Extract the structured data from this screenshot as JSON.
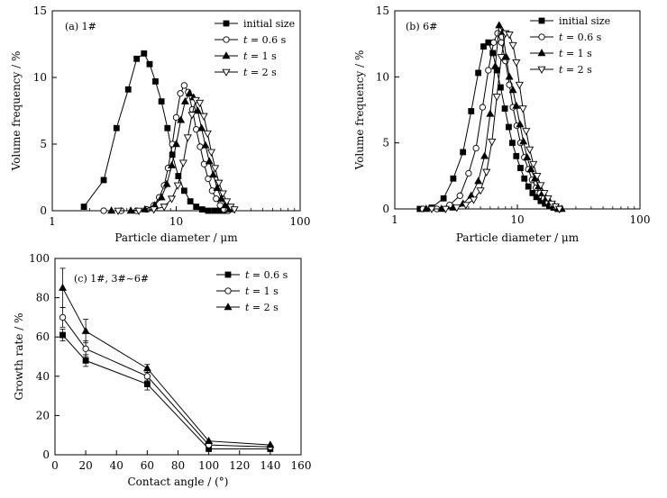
{
  "chart_data": [
    {
      "type": "line",
      "panel_label": "(a) 1#",
      "xlabel": "Particle diameter / μm",
      "ylabel": "Volume frequency / %",
      "xscale": "log",
      "xlim": [
        1,
        100
      ],
      "ylim": [
        0,
        15
      ],
      "xticks": [
        1,
        10,
        100
      ],
      "xtick_labels": [
        "1",
        "10",
        "100"
      ],
      "yticks": [
        0,
        5,
        10,
        15
      ],
      "ytick_labels": [
        "0",
        "5",
        "10",
        "15"
      ],
      "legend_position": "top-right",
      "series": [
        {
          "name": "initial size",
          "legend_label": "initial size",
          "marker": "square-filled",
          "x": [
            1.8,
            2.6,
            3.3,
            4.1,
            4.8,
            5.5,
            6.1,
            6.8,
            7.6,
            8.5,
            9.3,
            10.4,
            11.6,
            13.0,
            14.5,
            16.2,
            18.1,
            20.3,
            22.7,
            25.4
          ],
          "y": [
            0.3,
            2.3,
            6.2,
            9.1,
            11.4,
            11.8,
            11.0,
            9.7,
            8.2,
            6.2,
            4.2,
            2.6,
            1.5,
            0.7,
            0.3,
            0.1,
            0.0,
            0.0,
            0.0,
            0.0
          ]
        },
        {
          "name": "t = 0.6 s",
          "legend_italic": "t",
          "legend_rest": " = 0.6 s",
          "marker": "circle-open",
          "x": [
            2.6,
            3.6,
            4.8,
            5.8,
            6.6,
            7.3,
            8.0,
            8.6,
            9.3,
            10.0,
            10.8,
            11.6,
            12.5,
            13.5,
            14.5,
            15.6,
            16.8,
            18.1,
            19.5,
            21.0,
            22.6,
            24.3,
            26.2
          ],
          "y": [
            0.0,
            0.0,
            0.0,
            0.1,
            0.4,
            1.0,
            1.9,
            3.2,
            5.0,
            7.0,
            8.8,
            9.4,
            8.9,
            7.6,
            6.1,
            4.8,
            3.5,
            2.4,
            1.5,
            0.9,
            0.4,
            0.1,
            0.0
          ]
        },
        {
          "name": "t = 1 s",
          "legend_italic": "t",
          "legend_rest": " = 1 s",
          "marker": "triangle-up-filled",
          "x": [
            3.0,
            4.3,
            5.6,
            6.7,
            7.6,
            8.4,
            9.2,
            10.0,
            10.9,
            11.8,
            12.8,
            13.8,
            14.9,
            16.0,
            17.2,
            18.5,
            19.9,
            21.4,
            23.1,
            24.9,
            26.8
          ],
          "y": [
            0.0,
            0.0,
            0.1,
            0.4,
            1.0,
            2.0,
            3.4,
            5.0,
            6.8,
            8.2,
            8.8,
            8.5,
            7.5,
            6.2,
            4.9,
            3.7,
            2.7,
            1.7,
            0.9,
            0.4,
            0.1
          ]
        },
        {
          "name": "t = 2 s",
          "legend_italic": "t",
          "legend_rest": " = 2 s",
          "marker": "triangle-down-open",
          "x": [
            3.4,
            5.0,
            6.6,
            8.0,
            9.2,
            10.3,
            11.4,
            12.4,
            13.4,
            14.4,
            15.5,
            16.7,
            17.9,
            19.2,
            20.6,
            22.1,
            23.8,
            25.6,
            27.5,
            29.5
          ],
          "y": [
            0.0,
            0.0,
            0.1,
            0.3,
            0.9,
            1.9,
            3.6,
            5.5,
            7.2,
            8.3,
            8.1,
            7.1,
            5.8,
            4.4,
            3.2,
            2.1,
            1.3,
            0.7,
            0.3,
            0.1
          ]
        }
      ]
    },
    {
      "type": "line",
      "panel_label": "(b) 6#",
      "xlabel": "Particle diameter / μm",
      "ylabel": "Volume frequency / %",
      "xscale": "log",
      "xlim": [
        1,
        100
      ],
      "ylim": [
        0,
        15
      ],
      "xticks": [
        1,
        10,
        100
      ],
      "xtick_labels": [
        "1",
        "10",
        "100"
      ],
      "yticks": [
        0,
        5,
        10,
        15
      ],
      "ytick_labels": [
        "0",
        "5",
        "10",
        "15"
      ],
      "legend_position": "top-right",
      "series": [
        {
          "name": "initial size",
          "legend_label": "initial size",
          "marker": "square-filled",
          "x": [
            1.6,
            2.0,
            2.5,
            3.0,
            3.6,
            4.2,
            4.8,
            5.3,
            5.8,
            6.3,
            6.8,
            7.3,
            7.9,
            8.5,
            9.1,
            9.8,
            10.6,
            11.4,
            12.3,
            13.3,
            14.3,
            15.5,
            16.8,
            18.2,
            19.7,
            21.3
          ],
          "y": [
            0.0,
            0.1,
            0.8,
            2.3,
            4.3,
            7.4,
            10.3,
            12.3,
            12.6,
            11.8,
            10.5,
            9.2,
            7.6,
            6.2,
            5.0,
            4.0,
            3.1,
            2.3,
            1.7,
            1.2,
            0.9,
            0.6,
            0.4,
            0.2,
            0.1,
            0.0
          ]
        },
        {
          "name": "t = 0.6 s",
          "legend_italic": "t",
          "legend_rest": " = 0.6 s",
          "marker": "circle-open",
          "x": [
            1.7,
            2.2,
            2.8,
            3.4,
            4.0,
            4.6,
            5.2,
            5.8,
            6.4,
            6.9,
            7.4,
            8.0,
            8.6,
            9.2,
            9.9,
            10.6,
            11.4,
            12.3,
            13.2,
            14.2,
            15.3,
            16.5,
            17.8,
            19.2,
            20.7,
            22.3
          ],
          "y": [
            0.0,
            0.0,
            0.3,
            1.0,
            2.7,
            4.6,
            7.7,
            10.5,
            12.6,
            13.3,
            12.6,
            11.2,
            9.4,
            7.7,
            6.3,
            5.0,
            3.9,
            3.0,
            2.2,
            1.6,
            1.2,
            0.8,
            0.5,
            0.3,
            0.1,
            0.0
          ]
        },
        {
          "name": "t = 1 s",
          "legend_italic": "t",
          "legend_rest": " = 1 s",
          "marker": "triangle-up-filled",
          "x": [
            1.8,
            2.4,
            3.0,
            3.6,
            4.2,
            4.8,
            5.4,
            6.0,
            6.6,
            7.1,
            7.6,
            8.1,
            8.6,
            9.2,
            9.8,
            10.5,
            11.2,
            12.0,
            12.9,
            13.9,
            14.9,
            16.0,
            17.2,
            18.5,
            19.9,
            21.4,
            23.0
          ],
          "y": [
            0.0,
            0.0,
            0.1,
            0.4,
            1.0,
            2.1,
            4.0,
            7.2,
            10.8,
            13.9,
            13.4,
            11.5,
            10.0,
            9.0,
            7.8,
            6.4,
            5.1,
            3.9,
            3.0,
            2.3,
            1.7,
            1.2,
            0.8,
            0.5,
            0.3,
            0.1,
            0.0
          ]
        },
        {
          "name": "t = 2 s",
          "legend_italic": "t",
          "legend_rest": " = 2 s",
          "marker": "triangle-down-open",
          "x": [
            2.0,
            2.6,
            3.2,
            3.8,
            4.4,
            5.0,
            5.6,
            6.2,
            6.8,
            7.4,
            8.0,
            8.6,
            9.2,
            9.8,
            10.4,
            11.1,
            11.8,
            12.6,
            13.5,
            14.5,
            15.5,
            16.6,
            17.8,
            19.1,
            20.5,
            22.0
          ],
          "y": [
            0.0,
            0.0,
            0.1,
            0.3,
            0.7,
            1.4,
            2.8,
            5.1,
            8.5,
            11.5,
            13.3,
            13.2,
            12.4,
            11.1,
            9.4,
            7.6,
            5.9,
            4.5,
            3.4,
            2.5,
            1.8,
            1.2,
            0.8,
            0.4,
            0.2,
            0.0
          ]
        }
      ]
    },
    {
      "type": "line",
      "panel_label": "(c) 1#, 3#~6#",
      "xlabel": "Contact angle / (°)",
      "ylabel": "Growth rate / %",
      "xscale": "linear",
      "xlim": [
        0,
        160
      ],
      "ylim": [
        0,
        100
      ],
      "xticks": [
        0,
        20,
        40,
        60,
        80,
        100,
        120,
        140,
        160
      ],
      "xtick_labels": [
        "0",
        "20",
        "40",
        "60",
        "80",
        "100",
        "120",
        "140",
        "160"
      ],
      "yticks": [
        0,
        20,
        40,
        60,
        80,
        100
      ],
      "ytick_labels": [
        "0",
        "20",
        "40",
        "60",
        "80",
        "100"
      ],
      "legend_position": "top-right",
      "series": [
        {
          "name": "t = 0.6 s",
          "legend_italic": "t",
          "legend_rest": " = 0.6 s",
          "marker": "square-filled",
          "x": [
            5,
            20,
            60,
            100,
            140
          ],
          "y": [
            61,
            48,
            36,
            3,
            3
          ],
          "err": [
            3,
            3,
            3,
            0,
            0
          ]
        },
        {
          "name": "t = 1 s",
          "legend_italic": "t",
          "legend_rest": " = 1 s",
          "marker": "circle-open",
          "x": [
            5,
            20,
            60,
            100,
            140
          ],
          "y": [
            70,
            54,
            40,
            5,
            4
          ],
          "err": [
            5,
            4,
            2,
            0,
            0
          ]
        },
        {
          "name": "t = 2 s",
          "legend_italic": "t",
          "legend_rest": " = 2 s",
          "marker": "triangle-up-filled",
          "x": [
            5,
            20,
            60,
            100,
            140
          ],
          "y": [
            85,
            63,
            44,
            7,
            5
          ],
          "err": [
            10,
            6,
            2,
            0,
            0
          ]
        }
      ]
    }
  ]
}
